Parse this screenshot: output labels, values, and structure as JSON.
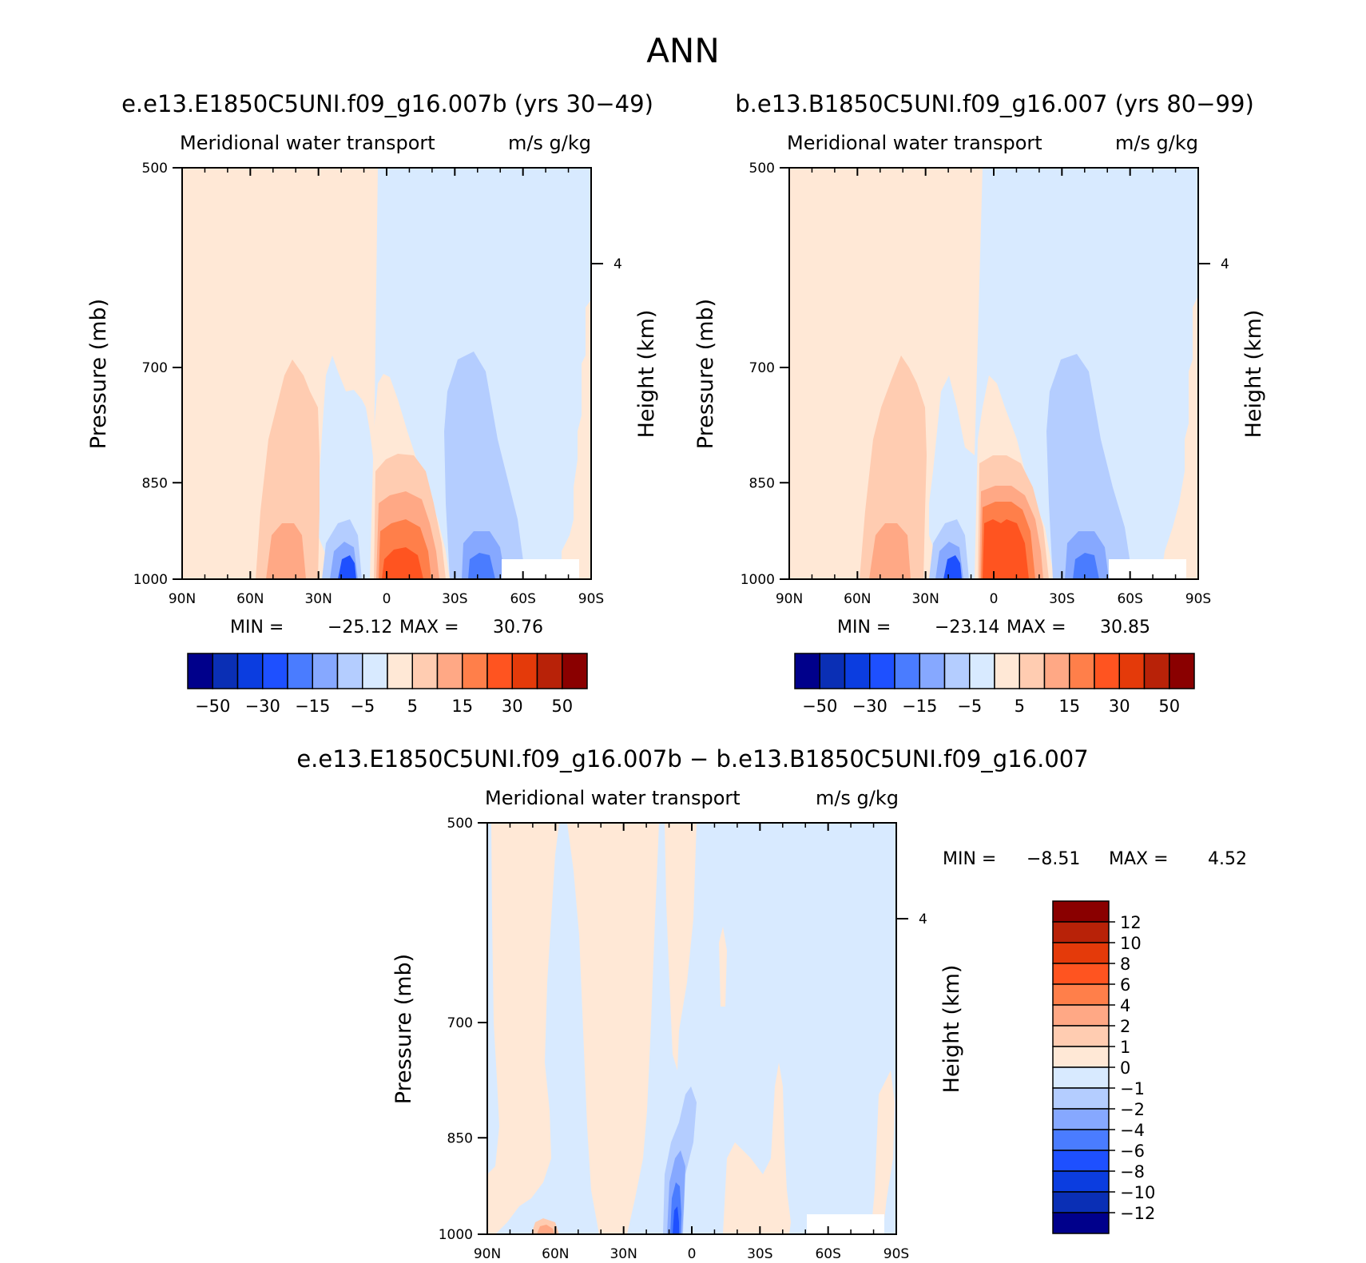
{
  "figure": {
    "title": "ANN"
  },
  "colors": {
    "frame": "#000000",
    "background": "#ffffff"
  },
  "chart_data": [
    {
      "type": "heatmap",
      "id": "left",
      "panel_title": "e.e13.E1850C5UNI.f09_g16.007b (yrs 30−49)",
      "title": "Meridional water transport",
      "units": "m/s g/kg",
      "ylabel": "Pressure (mb)",
      "ylabel_right": "Height (km)",
      "x_ticks": [
        "90N",
        "60N",
        "30N",
        "0",
        "30S",
        "60S",
        "90S"
      ],
      "y_ticks": [
        "500",
        "700",
        "850",
        "1000"
      ],
      "y_right_ticks": [
        "4"
      ],
      "min_label": "MIN =",
      "min_value": "−25.12",
      "max_label": "MAX =",
      "max_value": "30.76",
      "colorbar": {
        "orientation": "horizontal",
        "labels": [
          "−50",
          "−30",
          "−15",
          "−5",
          "5",
          "15",
          "30",
          "50"
        ],
        "colors": [
          "#00008b",
          "#0a2fb5",
          "#0b3de0",
          "#1e50ff",
          "#4a7cff",
          "#86a8ff",
          "#b4cdff",
          "#d8eaff",
          "#ffe8d6",
          "#ffccb1",
          "#ffa885",
          "#ff7f4a",
          "#ff5420",
          "#e43a0a",
          "#b82208",
          "#8a0000"
        ]
      },
      "regions": [
        {
          "lat": -25,
          "p": 930,
          "sign": "+"
        },
        {
          "lat": 45,
          "p": 900,
          "sign": "+"
        },
        {
          "lat": -48,
          "p": 900,
          "sign": "-"
        },
        {
          "lat": 13,
          "p": 960,
          "sign": "-"
        }
      ]
    },
    {
      "type": "heatmap",
      "id": "right",
      "panel_title": "b.e13.B1850C5UNI.f09_g16.007 (yrs 80−99)",
      "title": "Meridional water transport",
      "units": "m/s g/kg",
      "ylabel": "Pressure (mb)",
      "ylabel_right": "Height (km)",
      "x_ticks": [
        "90N",
        "60N",
        "30N",
        "0",
        "30S",
        "60S",
        "90S"
      ],
      "y_ticks": [
        "500",
        "700",
        "850",
        "1000"
      ],
      "y_right_ticks": [
        "4"
      ],
      "min_label": "MIN =",
      "min_value": "−23.14",
      "max_label": "MAX =",
      "max_value": "30.85",
      "colorbar": {
        "orientation": "horizontal",
        "labels": [
          "−50",
          "−30",
          "−15",
          "−5",
          "5",
          "15",
          "30",
          "50"
        ],
        "colors": [
          "#00008b",
          "#0a2fb5",
          "#0b3de0",
          "#1e50ff",
          "#4a7cff",
          "#86a8ff",
          "#b4cdff",
          "#d8eaff",
          "#ffe8d6",
          "#ffccb1",
          "#ffa885",
          "#ff7f4a",
          "#ff5420",
          "#e43a0a",
          "#b82208",
          "#8a0000"
        ]
      },
      "regions": [
        {
          "lat": -25,
          "p": 930,
          "sign": "+"
        },
        {
          "lat": 45,
          "p": 900,
          "sign": "+"
        },
        {
          "lat": -48,
          "p": 900,
          "sign": "-"
        },
        {
          "lat": 13,
          "p": 960,
          "sign": "-"
        }
      ]
    },
    {
      "type": "heatmap",
      "id": "diff",
      "panel_title": "e.e13.E1850C5UNI.f09_g16.007b − b.e13.B1850C5UNI.f09_g16.007",
      "title": "Meridional water transport",
      "units": "m/s g/kg",
      "ylabel": "Pressure (mb)",
      "ylabel_right": "Height (km)",
      "x_ticks": [
        "90N",
        "60N",
        "30N",
        "0",
        "30S",
        "60S",
        "90S"
      ],
      "y_ticks": [
        "500",
        "700",
        "850",
        "1000"
      ],
      "y_right_ticks": [
        "4"
      ],
      "min_label": "MIN =",
      "min_value": "−8.51",
      "max_label": "MAX =",
      "max_value": "4.52",
      "colorbar": {
        "orientation": "vertical",
        "labels": [
          "12",
          "10",
          "8",
          "6",
          "4",
          "2",
          "1",
          "0",
          "−1",
          "−2",
          "−4",
          "−6",
          "−8",
          "−10",
          "−12"
        ],
        "colors": [
          "#8a0000",
          "#b82208",
          "#e43a0a",
          "#ff5420",
          "#ff7f4a",
          "#ffa885",
          "#ffccb1",
          "#ffe8d6",
          "#d8eaff",
          "#b4cdff",
          "#86a8ff",
          "#4a7cff",
          "#1e50ff",
          "#0b3de0",
          "#0a2fb5",
          "#00008b"
        ]
      },
      "regions": [
        {
          "lat": 5,
          "p": 960,
          "sign": "-"
        },
        {
          "lat": 60,
          "p": 990,
          "sign": "+"
        }
      ]
    }
  ]
}
